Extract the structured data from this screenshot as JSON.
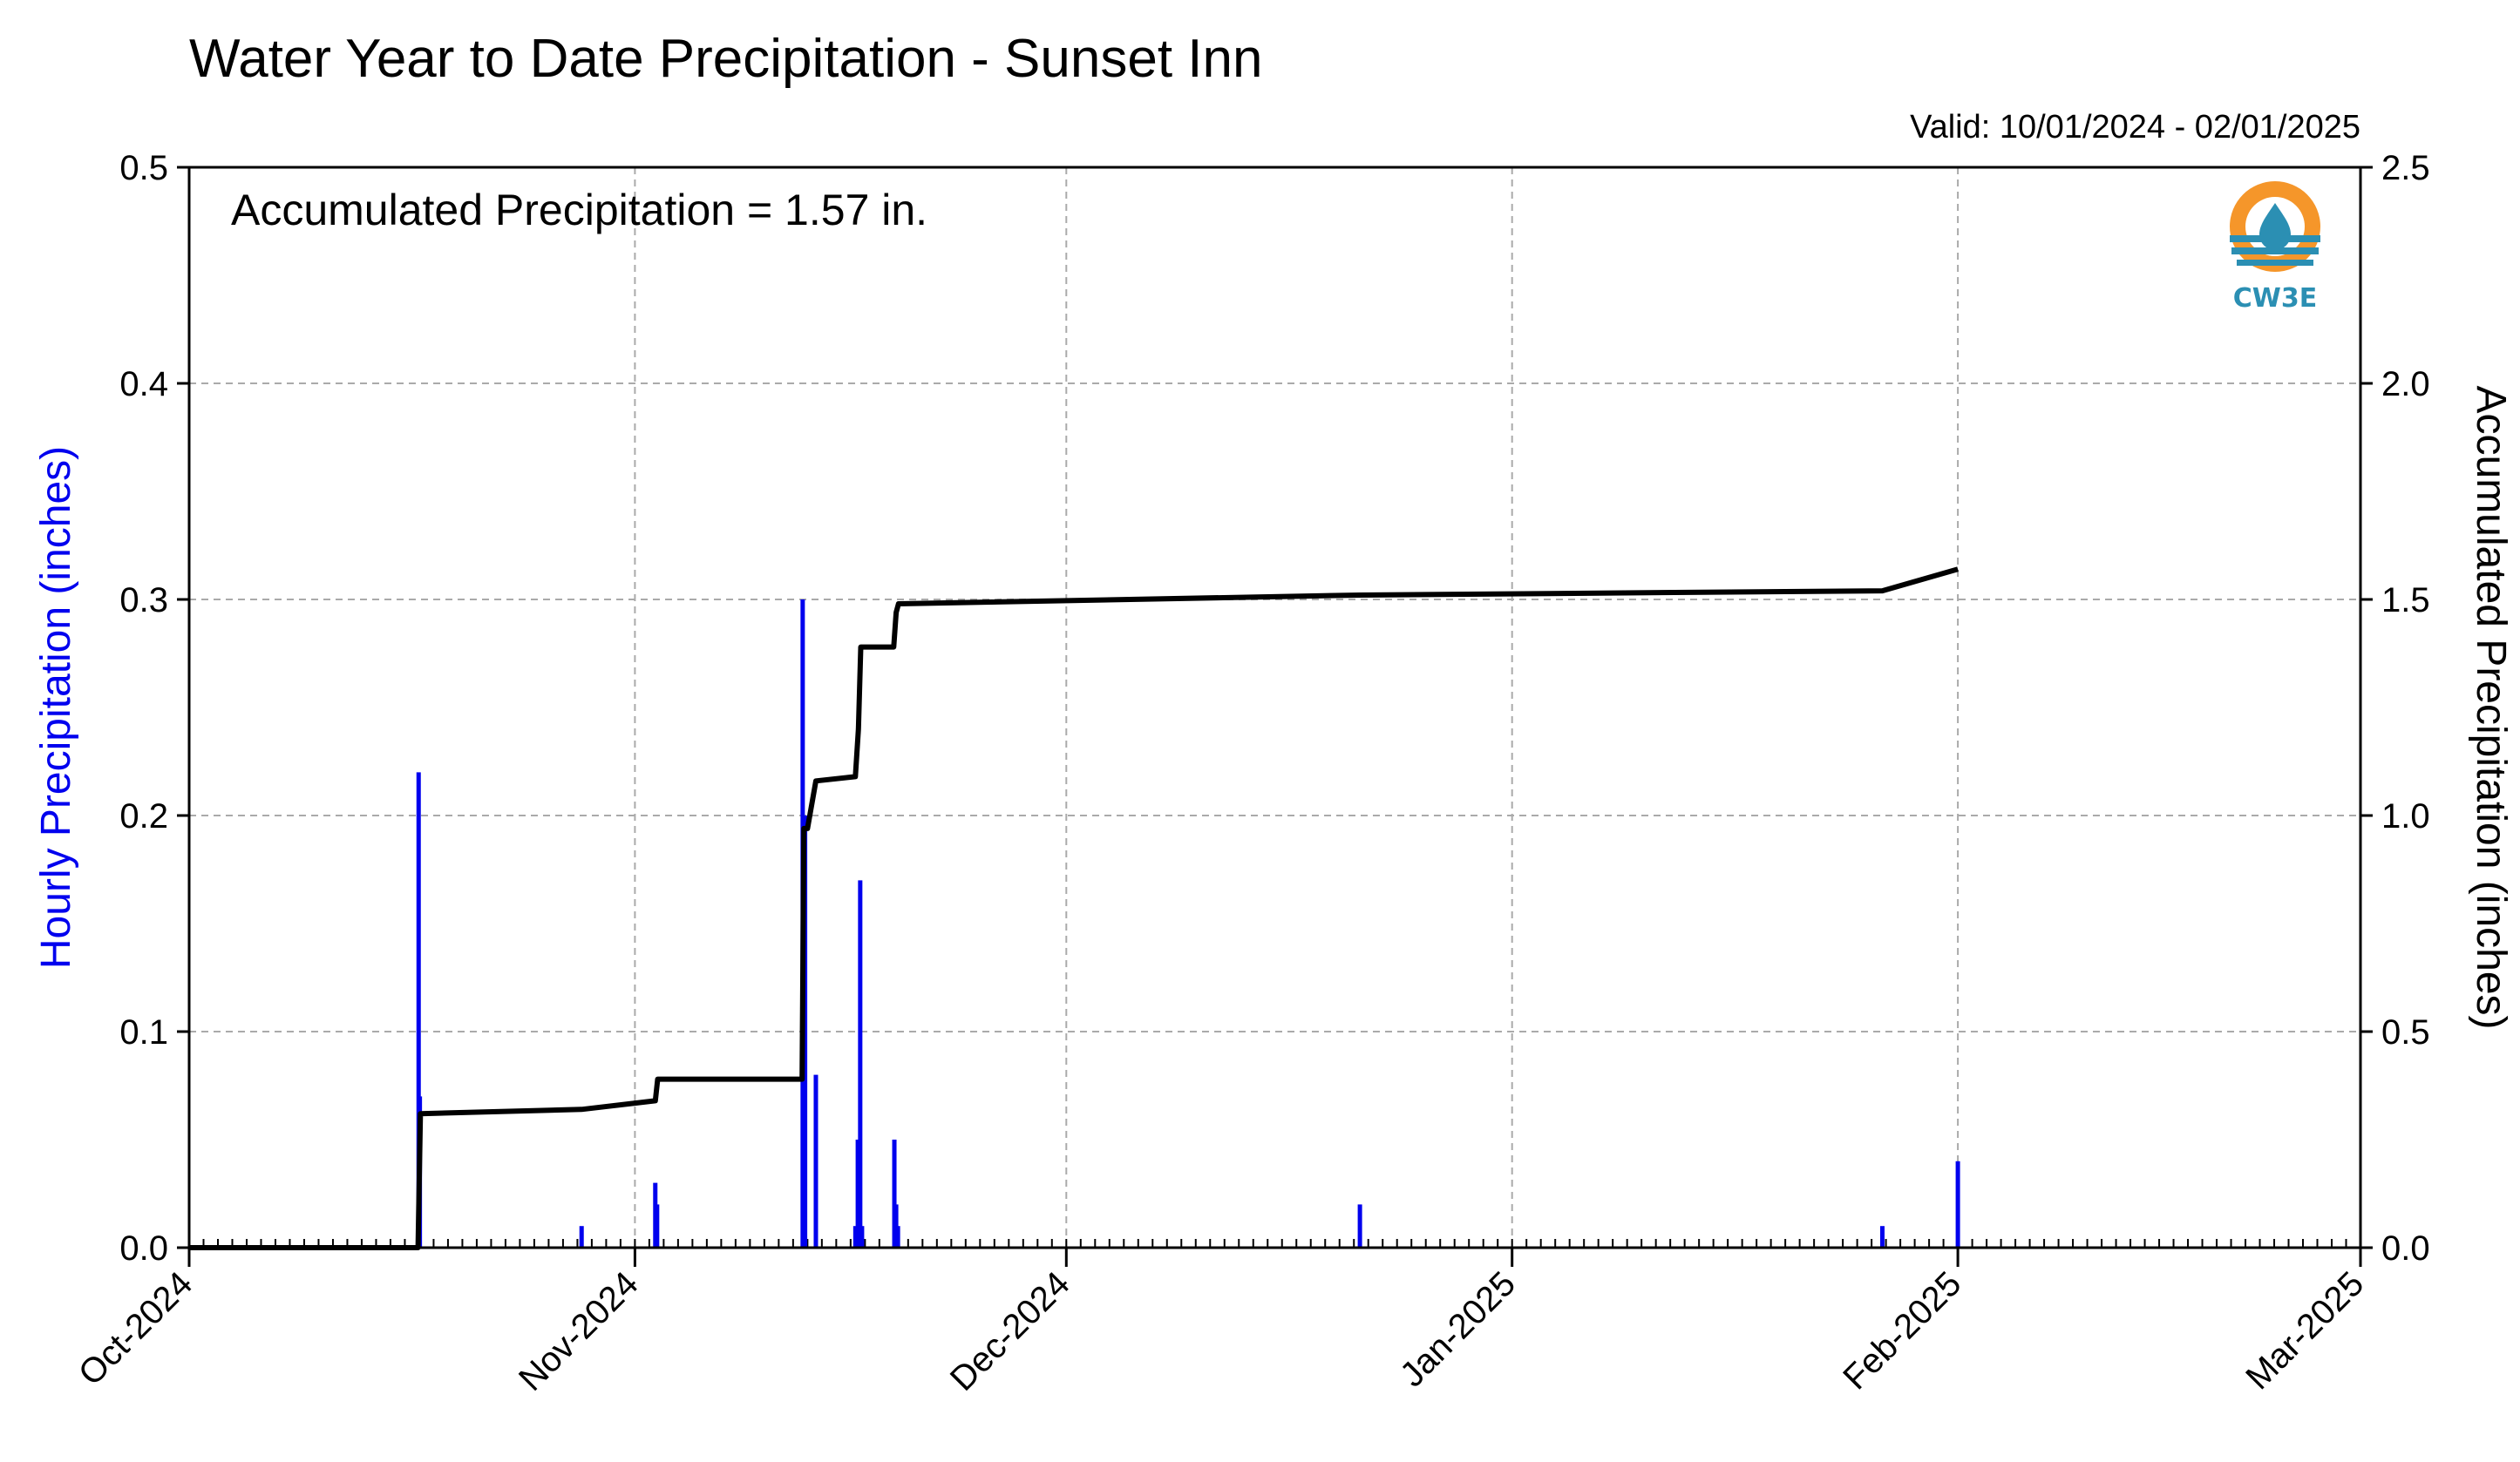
{
  "chart_data": {
    "type": "bar",
    "title": "Water Year to Date Precipitation - Sunset Inn",
    "subtitle": "Valid: 10/01/2024 - 02/01/2025",
    "annotation": "Accumulated Precipitation = 1.57 in.",
    "logo_text": "CW3E",
    "ylabel_left": "Hourly Precipitation (inches)",
    "ylabel_right": "Accumulated Precipitation (inches)",
    "ylim_left": [
      0.0,
      0.5
    ],
    "ylim_right": [
      0.0,
      2.5
    ],
    "yticks_left": [
      "0.0",
      "0.1",
      "0.2",
      "0.3",
      "0.4",
      "0.5"
    ],
    "yticks_right": [
      "0.0",
      "0.5",
      "1.0",
      "1.5",
      "2.0",
      "2.5"
    ],
    "xlim": [
      "2024-10-01",
      "2025-03-01"
    ],
    "xtick_labels": [
      "Oct-2024",
      "Nov-2024",
      "Dec-2024",
      "Jan-2025",
      "Feb-2025",
      "Mar-2025"
    ],
    "xtick_dates": [
      "2024-10-01",
      "2024-11-01",
      "2024-12-01",
      "2025-01-01",
      "2025-02-01",
      "2025-03-01"
    ],
    "grid": true,
    "colors": {
      "hourly": "#0000ee",
      "accumulated": "#000000",
      "grid": "#aaaaaa"
    },
    "series": [
      {
        "name": "Hourly Precipitation",
        "type": "bar",
        "axis": "left",
        "points": [
          {
            "x": "2024-10-16 23:00",
            "y": 0.22
          },
          {
            "x": "2024-10-17 01:00",
            "y": 0.07
          },
          {
            "x": "2024-10-28 07:00",
            "y": 0.01
          },
          {
            "x": "2024-11-02 10:00",
            "y": 0.03
          },
          {
            "x": "2024-11-02 13:00",
            "y": 0.02
          },
          {
            "x": "2024-11-12 16:00",
            "y": 0.3
          },
          {
            "x": "2024-11-12 20:00",
            "y": 0.2
          },
          {
            "x": "2024-11-13 14:00",
            "y": 0.08
          },
          {
            "x": "2024-11-16 08:00",
            "y": 0.01
          },
          {
            "x": "2024-11-16 12:00",
            "y": 0.05
          },
          {
            "x": "2024-11-16 16:00",
            "y": 0.17
          },
          {
            "x": "2024-11-16 19:00",
            "y": 0.01
          },
          {
            "x": "2024-11-19 01:00",
            "y": 0.05
          },
          {
            "x": "2024-11-19 04:00",
            "y": 0.02
          },
          {
            "x": "2024-11-19 07:00",
            "y": 0.01
          },
          {
            "x": "2024-12-21 10:00",
            "y": 0.02
          },
          {
            "x": "2025-01-26 18:00",
            "y": 0.01
          },
          {
            "x": "2025-02-01 00:00",
            "y": 0.04
          }
        ]
      },
      {
        "name": "Accumulated Precipitation",
        "type": "step",
        "axis": "right",
        "points": [
          {
            "x": "2024-10-01 00:00",
            "y": 0.0
          },
          {
            "x": "2024-10-16 22:00",
            "y": 0.0
          },
          {
            "x": "2024-10-17 02:00",
            "y": 0.31
          },
          {
            "x": "2024-10-28 07:00",
            "y": 0.32
          },
          {
            "x": "2024-11-02 10:00",
            "y": 0.34
          },
          {
            "x": "2024-11-02 14:00",
            "y": 0.39
          },
          {
            "x": "2024-11-12 15:00",
            "y": 0.39
          },
          {
            "x": "2024-11-12 18:00",
            "y": 0.97
          },
          {
            "x": "2024-11-13 00:00",
            "y": 0.97
          },
          {
            "x": "2024-11-13 14:00",
            "y": 1.08
          },
          {
            "x": "2024-11-16 08:00",
            "y": 1.09
          },
          {
            "x": "2024-11-16 13:00",
            "y": 1.2
          },
          {
            "x": "2024-11-16 17:00",
            "y": 1.39
          },
          {
            "x": "2024-11-19 00:00",
            "y": 1.39
          },
          {
            "x": "2024-11-19 04:00",
            "y": 1.47
          },
          {
            "x": "2024-11-19 08:00",
            "y": 1.49
          },
          {
            "x": "2024-12-21 10:00",
            "y": 1.51
          },
          {
            "x": "2025-01-26 18:00",
            "y": 1.52
          },
          {
            "x": "2025-02-01 00:00",
            "y": 1.57
          }
        ]
      }
    ]
  }
}
